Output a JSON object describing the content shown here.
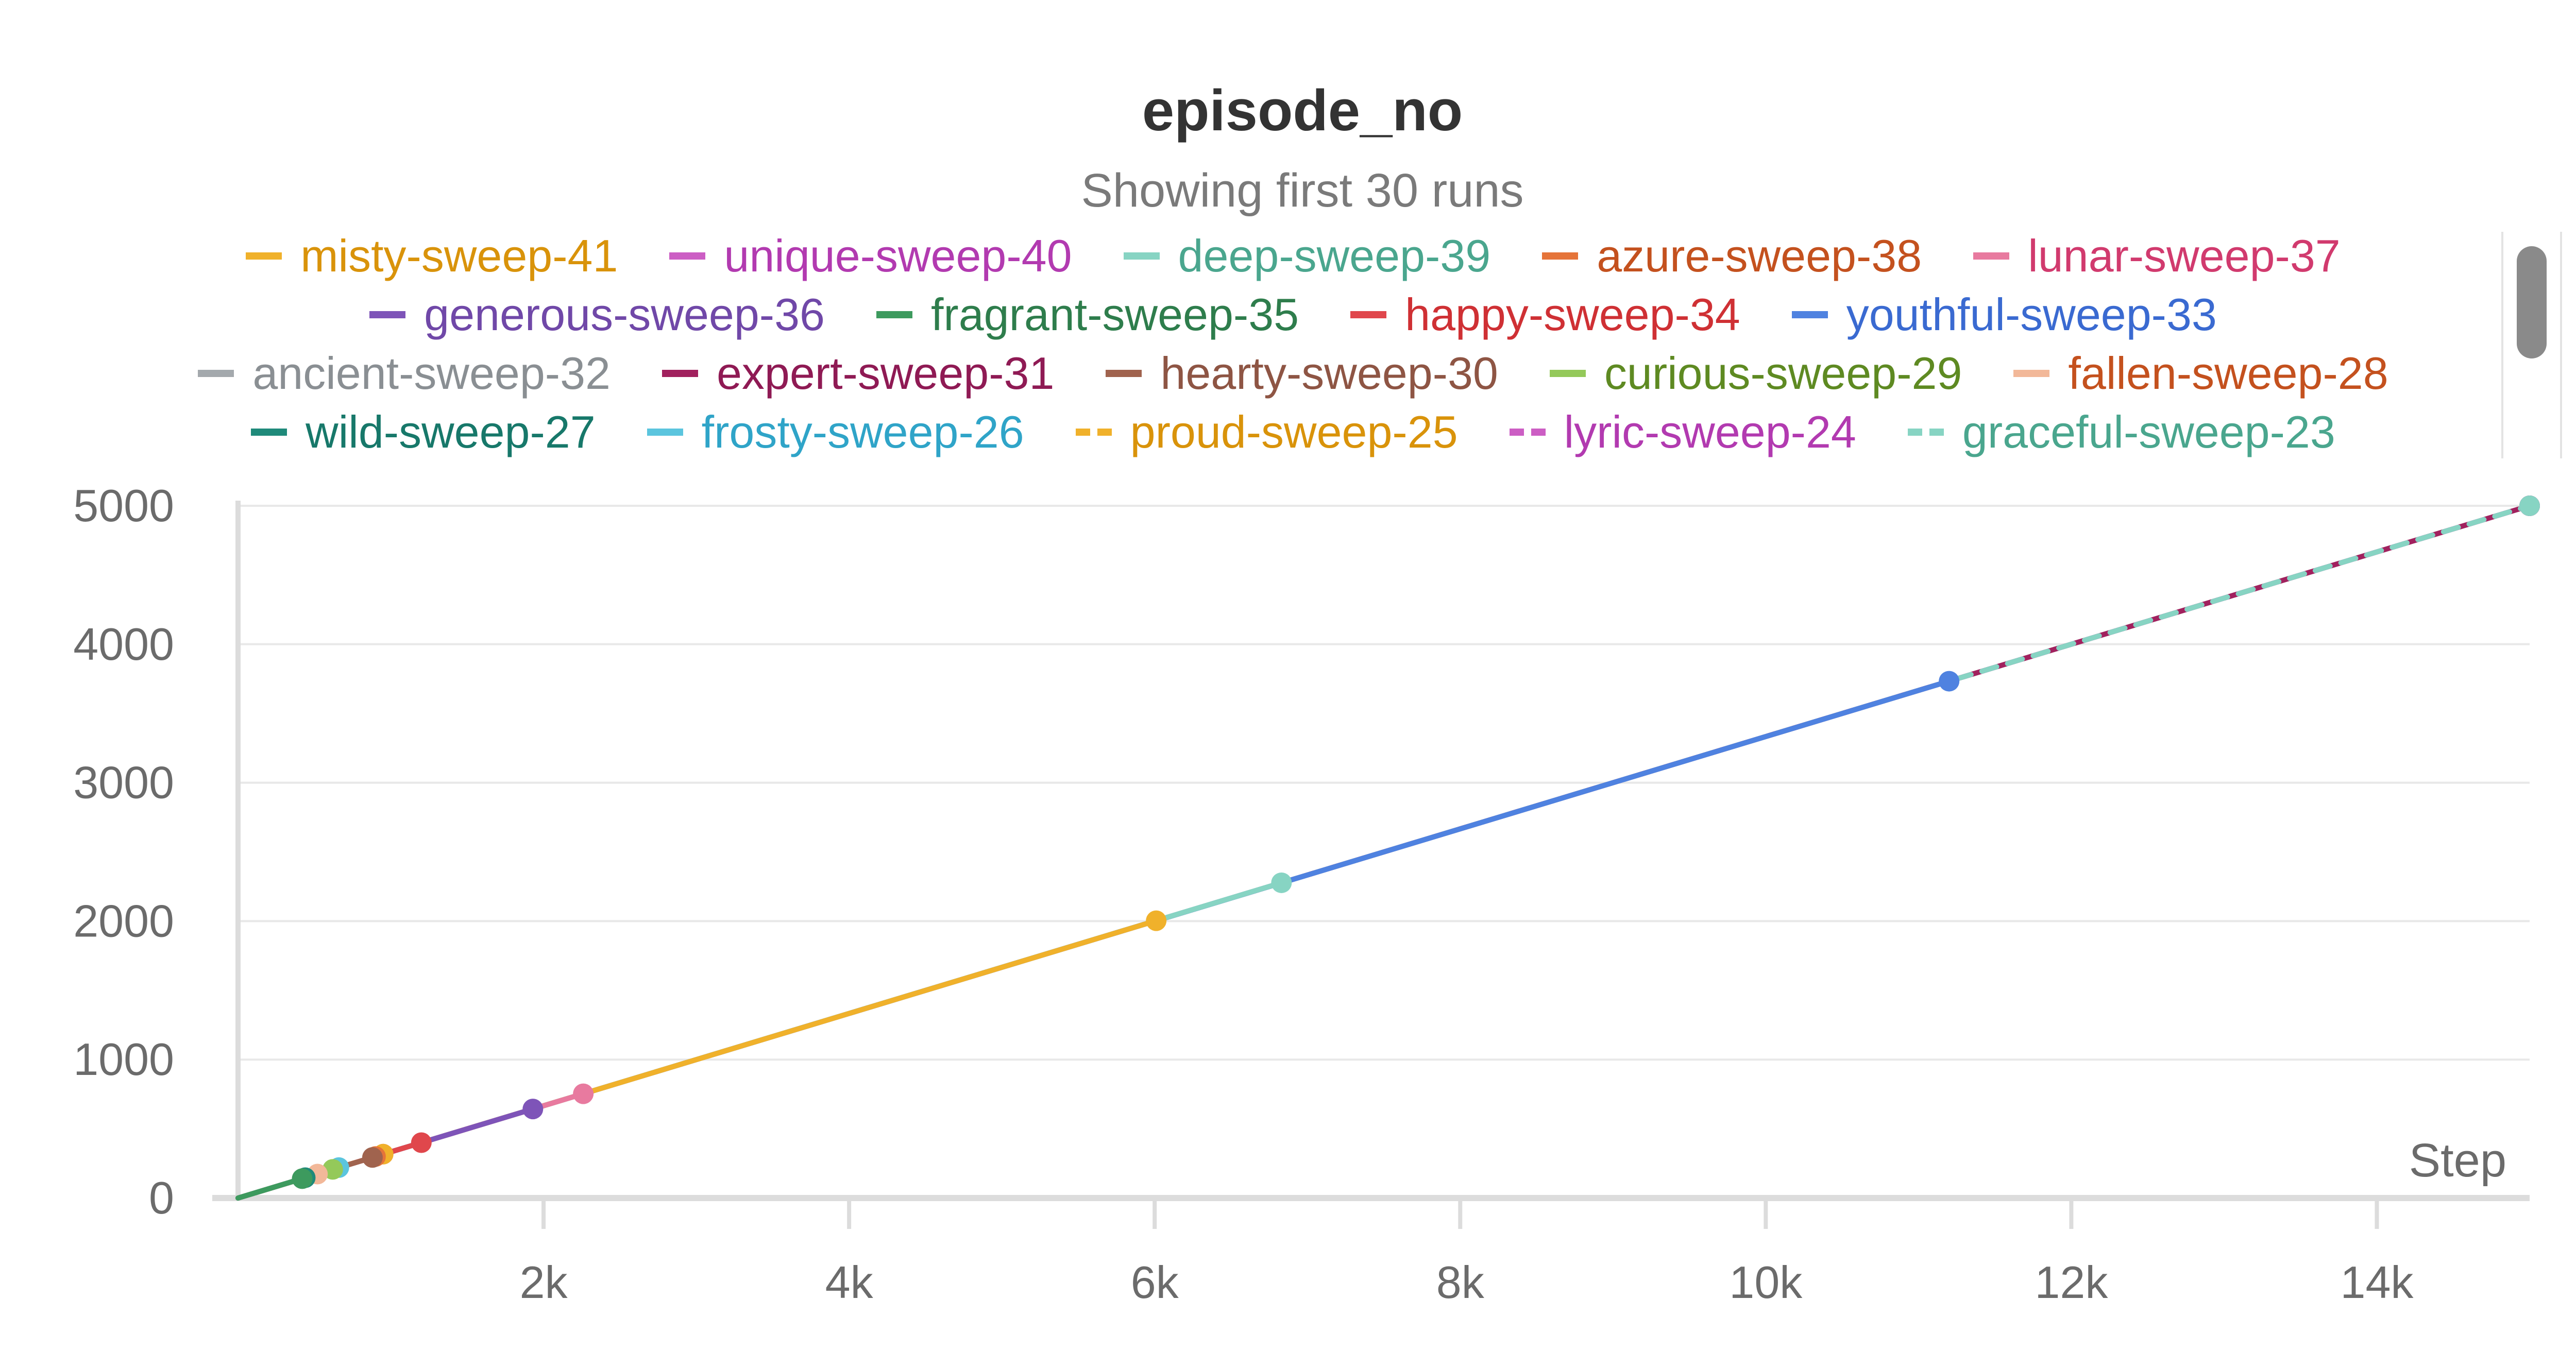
{
  "chart_data": {
    "type": "line",
    "title": "episode_no",
    "subtitle": "Showing first 30 runs",
    "xlabel": "Step",
    "ylabel": "",
    "xlim": [
      0,
      15000
    ],
    "ylim": [
      0,
      5000
    ],
    "x_ticks": [
      2000,
      4000,
      6000,
      8000,
      10000,
      12000,
      14000
    ],
    "x_tick_labels": [
      "2k",
      "4k",
      "6k",
      "8k",
      "10k",
      "12k",
      "14k"
    ],
    "y_ticks": [
      0,
      1000,
      2000,
      3000,
      4000,
      5000
    ],
    "y_tick_labels": [
      "0",
      "1000",
      "2000",
      "3000",
      "4000",
      "5000"
    ],
    "grid": true,
    "legend_position": "top",
    "series": [
      {
        "name": "misty-sweep-41",
        "color": "#f0b12b",
        "text_color": "#d9930a",
        "dash": false,
        "x": [
          0,
          6010
        ],
        "y": [
          0,
          2003
        ]
      },
      {
        "name": "unique-sweep-40",
        "color": "#cc5ec4",
        "text_color": "#b23ab0",
        "dash": false,
        "x": [
          0,
          950
        ],
        "y": [
          0,
          317
        ]
      },
      {
        "name": "deep-sweep-39",
        "color": "#87d4c3",
        "text_color": "#4aa68e",
        "dash": false,
        "x": [
          0,
          6830
        ],
        "y": [
          0,
          2277
        ]
      },
      {
        "name": "azure-sweep-38",
        "color": "#e57439",
        "text_color": "#c4511e",
        "dash": false,
        "x": [
          0,
          900
        ],
        "y": [
          0,
          300
        ]
      },
      {
        "name": "lunar-sweep-37",
        "color": "#e87a9f",
        "text_color": "#d13a6e",
        "dash": false,
        "x": [
          0,
          2260
        ],
        "y": [
          0,
          753
        ]
      },
      {
        "name": "generous-sweep-36",
        "color": "#7e54b8",
        "text_color": "#7048a8",
        "dash": false,
        "x": [
          0,
          1930
        ],
        "y": [
          0,
          643
        ]
      },
      {
        "name": "fragrant-sweep-35",
        "color": "#3d9a5e",
        "text_color": "#2e7d4c",
        "dash": false,
        "x": [
          0,
          420
        ],
        "y": [
          0,
          140
        ]
      },
      {
        "name": "happy-sweep-34",
        "color": "#e0474c",
        "text_color": "#cf3034",
        "dash": false,
        "x": [
          0,
          1200
        ],
        "y": [
          0,
          400
        ]
      },
      {
        "name": "youthful-sweep-33",
        "color": "#4f82e0",
        "text_color": "#3a6ad1",
        "dash": false,
        "x": [
          0,
          11200
        ],
        "y": [
          0,
          3733
        ]
      },
      {
        "name": "ancient-sweep-32",
        "color": "#a4a9ad",
        "text_color": "#8a8f93",
        "dash": false,
        "x": [
          0,
          15000
        ],
        "y": [
          0,
          5000
        ]
      },
      {
        "name": "expert-sweep-31",
        "color": "#a1215e",
        "text_color": "#8f1a54",
        "dash": false,
        "x": [
          0,
          15000
        ],
        "y": [
          0,
          5000
        ]
      },
      {
        "name": "hearty-sweep-30",
        "color": "#a0634e",
        "text_color": "#8e5544",
        "dash": false,
        "x": [
          0,
          880
        ],
        "y": [
          0,
          293
        ]
      },
      {
        "name": "curious-sweep-29",
        "color": "#94c95a",
        "text_color": "#5e8a22",
        "dash": false,
        "x": [
          0,
          620
        ],
        "y": [
          0,
          207
        ]
      },
      {
        "name": "fallen-sweep-28",
        "color": "#f2b899",
        "text_color": "#c4511e",
        "dash": false,
        "x": [
          0,
          520
        ],
        "y": [
          0,
          173
        ]
      },
      {
        "name": "wild-sweep-27",
        "color": "#1f8a7a",
        "text_color": "#17786a",
        "dash": false,
        "x": [
          0,
          440
        ],
        "y": [
          0,
          147
        ]
      },
      {
        "name": "frosty-sweep-26",
        "color": "#5bc5de",
        "text_color": "#2fa4c8",
        "dash": false,
        "x": [
          0,
          660
        ],
        "y": [
          0,
          220
        ]
      },
      {
        "name": "proud-sweep-25",
        "color": "#f0b12b",
        "text_color": "#d9930a",
        "dash": true,
        "x": [
          0,
          950
        ],
        "y": [
          0,
          317
        ]
      },
      {
        "name": "lyric-sweep-24",
        "color": "#cc5ec4",
        "text_color": "#b23ab0",
        "dash": true,
        "x": [
          0,
          15000
        ],
        "y": [
          0,
          5000
        ]
      },
      {
        "name": "graceful-sweep-23",
        "color": "#87d4c3",
        "text_color": "#4aa68e",
        "dash": true,
        "x": [
          0,
          15000
        ],
        "y": [
          0,
          5000
        ]
      }
    ]
  },
  "legend_scrollbar": {
    "visible": true
  }
}
